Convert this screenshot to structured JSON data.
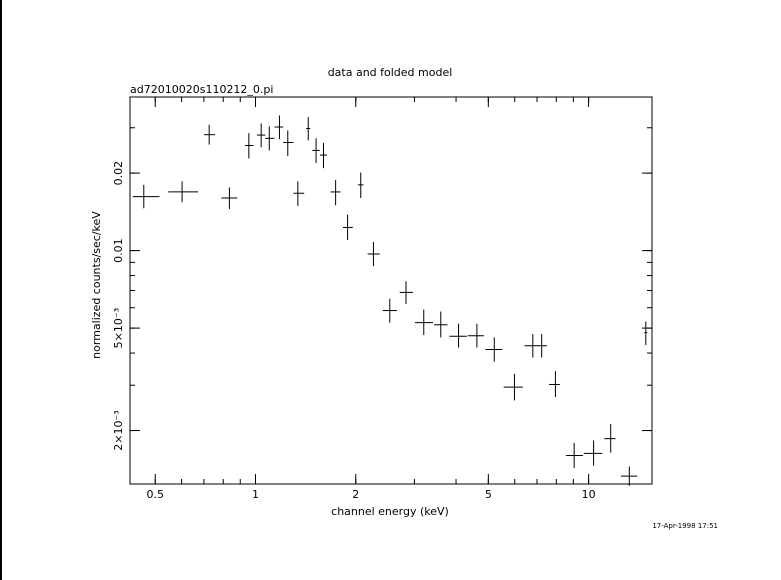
{
  "chart_data": {
    "type": "scatter",
    "title": "data and folded model",
    "subtitle": "ad72010020s110212_0.pi",
    "xlabel": "channel energy (keV)",
    "ylabel": "normalized counts/sec/keV",
    "timestamp": "17-Apr-1998 17:51",
    "x_scale": "log",
    "y_scale": "log",
    "xlim": [
      0.42,
      15.5
    ],
    "ylim": [
      0.00124,
      0.0395
    ],
    "x_ticks": [
      {
        "value": 0.5,
        "label": "0.5"
      },
      {
        "value": 1,
        "label": "1"
      },
      {
        "value": 2,
        "label": "2"
      },
      {
        "value": 5,
        "label": "5"
      },
      {
        "value": 10,
        "label": "10"
      }
    ],
    "y_ticks": [
      {
        "value": 0.002,
        "label": "2×10⁻³"
      },
      {
        "value": 0.005,
        "label": "5×10⁻³"
      },
      {
        "value": 0.01,
        "label": "0.01"
      },
      {
        "value": 0.02,
        "label": "0.02"
      }
    ],
    "series": [
      {
        "points": [
          {
            "x": 0.462,
            "xlo": 0.428,
            "xhi": 0.515,
            "y": 0.0162,
            "ylo": 0.0146,
            "yhi": 0.018
          },
          {
            "x": 0.602,
            "xlo": 0.547,
            "xhi": 0.672,
            "y": 0.0169,
            "ylo": 0.0154,
            "yhi": 0.0186
          },
          {
            "x": 0.726,
            "xlo": 0.701,
            "xhi": 0.757,
            "y": 0.0282,
            "ylo": 0.0258,
            "yhi": 0.0308
          },
          {
            "x": 0.835,
            "xlo": 0.79,
            "xhi": 0.882,
            "y": 0.016,
            "ylo": 0.0145,
            "yhi": 0.0176
          },
          {
            "x": 0.955,
            "xlo": 0.929,
            "xhi": 0.985,
            "y": 0.0256,
            "ylo": 0.0228,
            "yhi": 0.0286
          },
          {
            "x": 1.04,
            "xlo": 1.01,
            "xhi": 1.07,
            "y": 0.0281,
            "ylo": 0.0252,
            "yhi": 0.0312
          },
          {
            "x": 1.1,
            "xlo": 1.07,
            "xhi": 1.14,
            "y": 0.0273,
            "ylo": 0.0245,
            "yhi": 0.0304
          },
          {
            "x": 1.18,
            "xlo": 1.14,
            "xhi": 1.21,
            "y": 0.0302,
            "ylo": 0.0271,
            "yhi": 0.0335
          },
          {
            "x": 1.25,
            "xlo": 1.21,
            "xhi": 1.3,
            "y": 0.0263,
            "ylo": 0.0233,
            "yhi": 0.0293
          },
          {
            "x": 1.34,
            "xlo": 1.3,
            "xhi": 1.4,
            "y": 0.0167,
            "ylo": 0.0149,
            "yhi": 0.0186
          },
          {
            "x": 1.44,
            "xlo": 1.42,
            "xhi": 1.46,
            "y": 0.0298,
            "ylo": 0.0268,
            "yhi": 0.033
          },
          {
            "x": 1.52,
            "xlo": 1.48,
            "xhi": 1.56,
            "y": 0.0245,
            "ylo": 0.0219,
            "yhi": 0.0273
          },
          {
            "x": 1.6,
            "xlo": 1.56,
            "xhi": 1.64,
            "y": 0.0235,
            "ylo": 0.0209,
            "yhi": 0.0262
          },
          {
            "x": 1.74,
            "xlo": 1.68,
            "xhi": 1.8,
            "y": 0.0169,
            "ylo": 0.015,
            "yhi": 0.0188
          },
          {
            "x": 1.89,
            "xlo": 1.83,
            "xhi": 1.96,
            "y": 0.0123,
            "ylo": 0.011,
            "yhi": 0.0138
          },
          {
            "x": 2.07,
            "xlo": 2.03,
            "xhi": 2.11,
            "y": 0.018,
            "ylo": 0.016,
            "yhi": 0.0201
          },
          {
            "x": 2.26,
            "xlo": 2.17,
            "xhi": 2.36,
            "y": 0.0097,
            "ylo": 0.0087,
            "yhi": 0.0108
          },
          {
            "x": 2.53,
            "xlo": 2.41,
            "xhi": 2.66,
            "y": 0.00585,
            "ylo": 0.00525,
            "yhi": 0.0065
          },
          {
            "x": 2.83,
            "xlo": 2.71,
            "xhi": 2.97,
            "y": 0.00688,
            "ylo": 0.0062,
            "yhi": 0.0076
          },
          {
            "x": 3.2,
            "xlo": 3.01,
            "xhi": 3.41,
            "y": 0.00525,
            "ylo": 0.0047,
            "yhi": 0.0059
          },
          {
            "x": 3.6,
            "xlo": 3.44,
            "xhi": 3.77,
            "y": 0.00515,
            "ylo": 0.0046,
            "yhi": 0.0058
          },
          {
            "x": 4.07,
            "xlo": 3.82,
            "xhi": 4.31,
            "y": 0.00465,
            "ylo": 0.0042,
            "yhi": 0.0052
          },
          {
            "x": 4.62,
            "xlo": 4.34,
            "xhi": 4.85,
            "y": 0.00467,
            "ylo": 0.0042,
            "yhi": 0.0052
          },
          {
            "x": 5.21,
            "xlo": 4.9,
            "xhi": 5.51,
            "y": 0.00413,
            "ylo": 0.0037,
            "yhi": 0.0046
          },
          {
            "x": 5.99,
            "xlo": 5.56,
            "xhi": 6.35,
            "y": 0.00295,
            "ylo": 0.00262,
            "yhi": 0.00332
          },
          {
            "x": 6.8,
            "xlo": 6.42,
            "xhi": 7.0,
            "y": 0.00427,
            "ylo": 0.00384,
            "yhi": 0.00474
          },
          {
            "x": 7.23,
            "xlo": 7.0,
            "xhi": 7.5,
            "y": 0.00427,
            "ylo": 0.00384,
            "yhi": 0.00474
          },
          {
            "x": 7.95,
            "xlo": 7.61,
            "xhi": 8.2,
            "y": 0.00302,
            "ylo": 0.0027,
            "yhi": 0.0034
          },
          {
            "x": 9.05,
            "xlo": 8.55,
            "xhi": 9.62,
            "y": 0.0016,
            "ylo": 0.00143,
            "yhi": 0.00179
          },
          {
            "x": 10.35,
            "xlo": 9.68,
            "xhi": 11.0,
            "y": 0.00163,
            "ylo": 0.00146,
            "yhi": 0.00183
          },
          {
            "x": 11.65,
            "xlo": 11.15,
            "xhi": 12.05,
            "y": 0.00186,
            "ylo": 0.00164,
            "yhi": 0.00212
          },
          {
            "x": 13.25,
            "xlo": 12.5,
            "xhi": 14.0,
            "y": 0.00133,
            "ylo": 0.00122,
            "yhi": 0.00145
          },
          {
            "x": 14.85,
            "xlo": 14.7,
            "xhi": 15.0,
            "y": 0.0048,
            "ylo": 0.0043,
            "yhi": 0.0053
          }
        ]
      }
    ]
  }
}
